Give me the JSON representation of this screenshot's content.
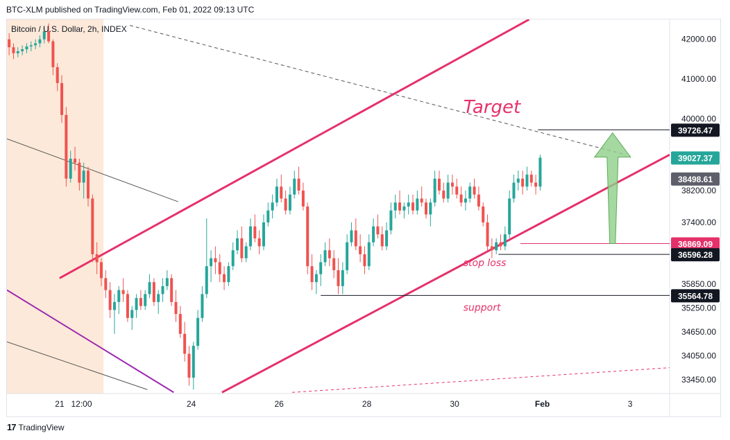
{
  "header": {
    "publish_line": "BTC-XLM published on TradingView.com, Feb 01, 2022 09:13 UTC"
  },
  "footer": {
    "brand": "TradingView",
    "logo_glyph": "17"
  },
  "colors": {
    "up": "#26a69a",
    "down": "#ef5350",
    "channel": "#e5316b",
    "purple": "#9c27b0",
    "arrow": "#8fcf8a",
    "session_shade": "#fde9d9"
  },
  "chart_data": {
    "type": "candlestick",
    "symbol_label": "Bitcoin / U.S. Dollar, 2h, INDEX",
    "ylim": [
      33100,
      42500
    ],
    "y_ticks": [
      42000.0,
      41000.0,
      40000.0,
      38200.0,
      37400.0,
      35850.0,
      35250.0,
      34650.0,
      34050.0,
      33450.0
    ],
    "x_ticks": [
      {
        "label": "21",
        "day": 21.0
      },
      {
        "label": "12:00",
        "day": 21.5
      },
      {
        "label": "24",
        "day": 24.0
      },
      {
        "label": "26",
        "day": 26.0
      },
      {
        "label": "28",
        "day": 28.0
      },
      {
        "label": "30",
        "day": 30.0
      },
      {
        "label": "Feb",
        "day": 32.0,
        "bold": true
      },
      {
        "label": "3",
        "day": 34.0
      }
    ],
    "xlim_days": [
      19.8,
      34.9
    ],
    "price_labels": [
      {
        "value": "39726.47",
        "price": 39726.47,
        "style": "dark"
      },
      {
        "value": "39027.37",
        "price": 39027.37,
        "style": "green"
      },
      {
        "value": "38498.61",
        "price": 38498.61,
        "style": "gray"
      },
      {
        "value": "36869.09",
        "price": 36869.09,
        "style": "red"
      },
      {
        "value": "36596.28",
        "price": 36596.28,
        "style": "dark"
      },
      {
        "value": "35564.78",
        "price": 35564.78,
        "style": "dark"
      }
    ],
    "annotations": [
      {
        "text": "Target",
        "day": 30.2,
        "price": 40150,
        "size": "large"
      },
      {
        "text": "stop loss",
        "day": 30.2,
        "price": 36300,
        "size": "small"
      },
      {
        "text": "support",
        "day": 30.2,
        "price": 35180,
        "size": "small"
      }
    ],
    "horizontal_levels": [
      {
        "price": 39726.47,
        "from_day": 31.9,
        "color": "#131722"
      },
      {
        "price": 36869.09,
        "from_day": 31.5,
        "color": "#e5316b"
      },
      {
        "price": 36596.28,
        "from_day": 31.0,
        "color": "#131722"
      },
      {
        "price": 35564.78,
        "from_day": 26.95,
        "color": "#131722"
      }
    ],
    "trend_lines": [
      {
        "name": "channel-upper",
        "p1": [
          21.0,
          36000
        ],
        "p2": [
          31.7,
          42500
        ],
        "color": "#e5316b",
        "width": 3
      },
      {
        "name": "channel-lower",
        "p1": [
          24.7,
          33130
        ],
        "p2": [
          34.9,
          39100
        ],
        "color": "#e5316b",
        "width": 3
      },
      {
        "name": "purple-descending",
        "p1": [
          19.8,
          35700
        ],
        "p2": [
          23.6,
          33130
        ],
        "color": "#9c27b0",
        "width": 2
      },
      {
        "name": "black-resistance",
        "p1": [
          19.8,
          39500
        ],
        "p2": [
          23.7,
          37920
        ],
        "color": "#555555",
        "width": 1
      },
      {
        "name": "black-lower",
        "p1": [
          19.8,
          34400
        ],
        "p2": [
          23.0,
          33200
        ],
        "color": "#555555",
        "width": 1
      },
      {
        "name": "dashed-resistance",
        "p1": [
          22.6,
          42350
        ],
        "p2": [
          33.9,
          39100
        ],
        "color": "#555555",
        "width": 1,
        "dash": "5,4"
      },
      {
        "name": "dashed-lower-red",
        "p1": [
          26.3,
          33130
        ],
        "p2": [
          34.9,
          33750
        ],
        "color": "#e5316b",
        "width": 1,
        "dash": "4,4"
      }
    ],
    "target_arrow": {
      "day": 33.6,
      "from_price": 36869.09,
      "to_price": 39650
    },
    "session_shade_days": [
      19.8,
      22.0
    ],
    "candles": [
      [
        19.85,
        42000,
        42150,
        41600,
        41800
      ],
      [
        19.95,
        41800,
        41900,
        41500,
        41650
      ],
      [
        20.05,
        41650,
        41800,
        41550,
        41700
      ],
      [
        20.15,
        41700,
        41850,
        41600,
        41750
      ],
      [
        20.25,
        41750,
        41900,
        41650,
        41820
      ],
      [
        20.35,
        41820,
        41950,
        41700,
        41850
      ],
      [
        20.45,
        41850,
        42000,
        41750,
        41900
      ],
      [
        20.55,
        41900,
        42100,
        41800,
        42000
      ],
      [
        20.65,
        42000,
        42300,
        41900,
        42200
      ],
      [
        20.75,
        42200,
        42400,
        41900,
        41950
      ],
      [
        20.85,
        41950,
        42000,
        41100,
        41300
      ],
      [
        20.95,
        41300,
        41400,
        40700,
        40900
      ],
      [
        21.05,
        40900,
        41100,
        39900,
        40100
      ],
      [
        21.15,
        40100,
        40300,
        38300,
        38500
      ],
      [
        21.25,
        38500,
        39200,
        38400,
        39000
      ],
      [
        21.35,
        39000,
        39300,
        38700,
        38900
      ],
      [
        21.45,
        38900,
        39000,
        38200,
        38400
      ],
      [
        21.55,
        38400,
        38900,
        38000,
        38700
      ],
      [
        21.65,
        38700,
        38800,
        37800,
        38000
      ],
      [
        21.75,
        38000,
        38100,
        36400,
        36600
      ],
      [
        21.85,
        36600,
        36900,
        36100,
        36400
      ],
      [
        21.95,
        36400,
        36500,
        35800,
        36000
      ],
      [
        22.05,
        36000,
        36200,
        35500,
        35700
      ],
      [
        22.15,
        35700,
        35900,
        35000,
        35200
      ],
      [
        22.25,
        35200,
        35600,
        34600,
        35400
      ],
      [
        22.35,
        35400,
        35800,
        35100,
        35700
      ],
      [
        22.45,
        35700,
        36000,
        35400,
        35600
      ],
      [
        22.55,
        35600,
        35700,
        34900,
        35000
      ],
      [
        22.65,
        35000,
        35300,
        34700,
        35200
      ],
      [
        22.75,
        35200,
        35600,
        35000,
        35500
      ],
      [
        22.85,
        35500,
        35700,
        35200,
        35300
      ],
      [
        22.95,
        35300,
        35700,
        35200,
        35600
      ],
      [
        23.05,
        35600,
        36100,
        35500,
        35900
      ],
      [
        23.15,
        35900,
        36000,
        35300,
        35400
      ],
      [
        23.25,
        35400,
        35700,
        35100,
        35600
      ],
      [
        23.35,
        35600,
        36000,
        35400,
        35800
      ],
      [
        23.45,
        35800,
        36200,
        35700,
        36000
      ],
      [
        23.55,
        36000,
        36100,
        35300,
        35400
      ],
      [
        23.65,
        35400,
        35700,
        34900,
        35100
      ],
      [
        23.75,
        35100,
        35300,
        34500,
        34600
      ],
      [
        23.85,
        34600,
        34900,
        33900,
        34100
      ],
      [
        23.95,
        34100,
        34300,
        33300,
        33500
      ],
      [
        24.05,
        33500,
        34400,
        33200,
        34300
      ],
      [
        24.15,
        34300,
        35200,
        34200,
        35000
      ],
      [
        24.25,
        35000,
        35800,
        34900,
        35600
      ],
      [
        24.35,
        35600,
        37500,
        35500,
        36300
      ],
      [
        24.45,
        36300,
        36700,
        35900,
        36500
      ],
      [
        24.55,
        36500,
        36800,
        36100,
        36400
      ],
      [
        24.65,
        36400,
        36600,
        35900,
        36100
      ],
      [
        24.75,
        36100,
        36300,
        35700,
        35900
      ],
      [
        24.85,
        35900,
        36400,
        35800,
        36300
      ],
      [
        24.95,
        36300,
        36900,
        36200,
        36700
      ],
      [
        25.05,
        36700,
        37200,
        36600,
        37000
      ],
      [
        25.15,
        37000,
        37300,
        36400,
        36500
      ],
      [
        25.25,
        36500,
        36900,
        36400,
        36800
      ],
      [
        25.35,
        36800,
        37500,
        36700,
        37300
      ],
      [
        25.45,
        37300,
        37600,
        36900,
        37000
      ],
      [
        25.55,
        37000,
        37200,
        36600,
        36800
      ],
      [
        25.65,
        36800,
        37600,
        36700,
        37400
      ],
      [
        25.75,
        37400,
        37900,
        37300,
        37700
      ],
      [
        25.85,
        37700,
        38100,
        37500,
        37900
      ],
      [
        25.95,
        37900,
        38500,
        37800,
        38300
      ],
      [
        26.05,
        38300,
        38600,
        37900,
        38000
      ],
      [
        26.15,
        38000,
        38200,
        37600,
        37700
      ],
      [
        26.25,
        37700,
        38300,
        37600,
        38100
      ],
      [
        26.35,
        38100,
        38700,
        38000,
        38500
      ],
      [
        26.45,
        38500,
        38800,
        38100,
        38200
      ],
      [
        26.55,
        38200,
        38400,
        37700,
        37800
      ],
      [
        26.65,
        37800,
        37900,
        36100,
        36300
      ],
      [
        26.75,
        36300,
        36600,
        35700,
        35900
      ],
      [
        26.85,
        35900,
        36200,
        35600,
        36100
      ],
      [
        26.95,
        36100,
        36600,
        35800,
        36400
      ],
      [
        27.05,
        36400,
        36900,
        36300,
        36700
      ],
      [
        27.15,
        36700,
        37000,
        36300,
        36500
      ],
      [
        27.25,
        36500,
        36700,
        36000,
        36200
      ],
      [
        27.35,
        36200,
        36500,
        35600,
        35800
      ],
      [
        27.45,
        35800,
        36400,
        35600,
        36200
      ],
      [
        27.55,
        36200,
        37100,
        36100,
        36900
      ],
      [
        27.65,
        36900,
        37400,
        36800,
        37200
      ],
      [
        27.75,
        37200,
        37500,
        36700,
        36800
      ],
      [
        27.85,
        36800,
        37100,
        36400,
        36600
      ],
      [
        27.95,
        36600,
        36800,
        36100,
        36300
      ],
      [
        28.05,
        36300,
        37100,
        36200,
        36900
      ],
      [
        28.15,
        36900,
        37500,
        36800,
        37300
      ],
      [
        28.25,
        37300,
        37600,
        37000,
        37100
      ],
      [
        28.35,
        37100,
        37300,
        36700,
        36800
      ],
      [
        28.45,
        36800,
        37400,
        36700,
        37200
      ],
      [
        28.55,
        37200,
        37900,
        37100,
        37700
      ],
      [
        28.65,
        37700,
        38100,
        37500,
        37900
      ],
      [
        28.75,
        37900,
        38200,
        37600,
        37700
      ],
      [
        28.85,
        37700,
        37900,
        37500,
        37800
      ],
      [
        28.95,
        37800,
        38100,
        37600,
        37900
      ],
      [
        29.05,
        37900,
        38100,
        37600,
        37700
      ],
      [
        29.15,
        37700,
        38200,
        37600,
        38000
      ],
      [
        29.25,
        38000,
        38300,
        37800,
        37900
      ],
      [
        29.35,
        37900,
        38000,
        37500,
        37600
      ],
      [
        29.45,
        37600,
        38000,
        37300,
        37900
      ],
      [
        29.55,
        37900,
        38700,
        37800,
        38500
      ],
      [
        29.65,
        38500,
        38700,
        38100,
        38200
      ],
      [
        29.75,
        38200,
        38400,
        37900,
        38000
      ],
      [
        29.85,
        38000,
        38600,
        37900,
        38400
      ],
      [
        29.95,
        38400,
        38600,
        38100,
        38300
      ],
      [
        30.05,
        38300,
        38500,
        38000,
        38100
      ],
      [
        30.15,
        38100,
        38300,
        37800,
        37900
      ],
      [
        30.25,
        37900,
        38200,
        37700,
        38000
      ],
      [
        30.35,
        38000,
        38400,
        37900,
        38300
      ],
      [
        30.45,
        38300,
        38500,
        38000,
        38100
      ],
      [
        30.55,
        38100,
        38300,
        37700,
        37800
      ],
      [
        30.65,
        37800,
        37900,
        37300,
        37400
      ],
      [
        30.75,
        37400,
        37600,
        36700,
        36800
      ],
      [
        30.85,
        36800,
        37000,
        36500,
        36700
      ],
      [
        30.95,
        36700,
        37000,
        36600,
        36900
      ],
      [
        31.05,
        36900,
        37100,
        36700,
        36800
      ],
      [
        31.15,
        36800,
        37300,
        36700,
        37100
      ],
      [
        31.25,
        37100,
        38200,
        37000,
        38000
      ],
      [
        31.35,
        38000,
        38600,
        37900,
        38400
      ],
      [
        31.45,
        38400,
        38700,
        38200,
        38500
      ],
      [
        31.55,
        38500,
        38700,
        38100,
        38300
      ],
      [
        31.65,
        38300,
        38800,
        38200,
        38600
      ],
      [
        31.75,
        38600,
        38700,
        38300,
        38400
      ],
      [
        31.85,
        38400,
        38600,
        38100,
        38300
      ],
      [
        31.95,
        38300,
        39100,
        38200,
        39027
      ]
    ]
  }
}
